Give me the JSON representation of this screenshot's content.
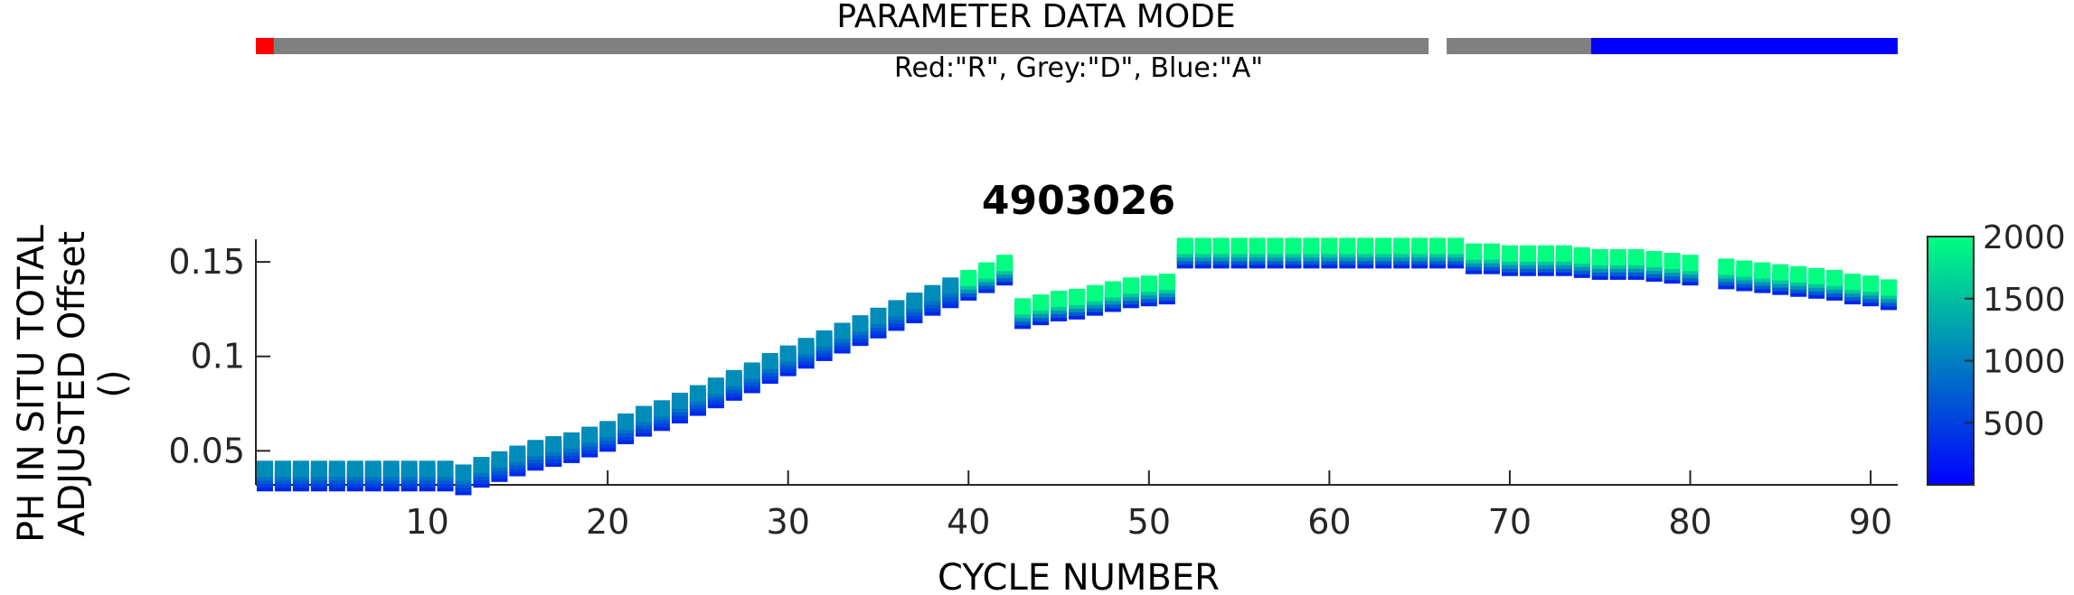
{
  "data_mode_bar": {
    "title": "PARAMETER DATA MODE",
    "legend": "Red:\"R\", Grey:\"D\", Blue:\"A\"",
    "colors": {
      "R": "#ff0000",
      "D": "#808080",
      "A": "#0000ff"
    },
    "segments": [
      {
        "mode": "R",
        "from": 1,
        "to": 1
      },
      {
        "mode": "D",
        "from": 2,
        "to": 65
      },
      {
        "mode": "D",
        "from": 67,
        "to": 74
      },
      {
        "mode": "A",
        "from": 75,
        "to": 91
      }
    ]
  },
  "chart_data": {
    "type": "scatter",
    "title": "4903026",
    "xlabel": "CYCLE NUMBER",
    "ylabel": [
      "PH IN SITU TOTAL",
      "ADJUSTED Offset",
      "()"
    ],
    "xlim": [
      0.5,
      91.5
    ],
    "ylim": [
      0.032,
      0.162
    ],
    "xticks": [
      10,
      20,
      30,
      40,
      50,
      60,
      70,
      80,
      90
    ],
    "yticks": [
      0.05,
      0.1,
      0.15
    ],
    "ytick_labels": [
      "0.05",
      "0.1",
      "0.15"
    ],
    "colorbar": {
      "range": [
        0,
        2000
      ],
      "ticks": [
        500,
        1000,
        1500,
        2000
      ],
      "colormap": [
        "#0000ff",
        "#00ff80"
      ]
    },
    "profiles": [
      {
        "cycle": 1,
        "value": 0.04
      },
      {
        "cycle": 2,
        "value": 0.04
      },
      {
        "cycle": 3,
        "value": 0.04
      },
      {
        "cycle": 4,
        "value": 0.04
      },
      {
        "cycle": 5,
        "value": 0.04
      },
      {
        "cycle": 6,
        "value": 0.04
      },
      {
        "cycle": 7,
        "value": 0.04
      },
      {
        "cycle": 8,
        "value": 0.04
      },
      {
        "cycle": 9,
        "value": 0.04
      },
      {
        "cycle": 10,
        "value": 0.04
      },
      {
        "cycle": 11,
        "value": 0.04
      },
      {
        "cycle": 12,
        "value": 0.038
      },
      {
        "cycle": 13,
        "value": 0.042
      },
      {
        "cycle": 14,
        "value": 0.045
      },
      {
        "cycle": 15,
        "value": 0.048
      },
      {
        "cycle": 16,
        "value": 0.051
      },
      {
        "cycle": 17,
        "value": 0.053
      },
      {
        "cycle": 18,
        "value": 0.055
      },
      {
        "cycle": 19,
        "value": 0.058
      },
      {
        "cycle": 20,
        "value": 0.061
      },
      {
        "cycle": 21,
        "value": 0.065
      },
      {
        "cycle": 22,
        "value": 0.069
      },
      {
        "cycle": 23,
        "value": 0.072
      },
      {
        "cycle": 24,
        "value": 0.076
      },
      {
        "cycle": 25,
        "value": 0.08
      },
      {
        "cycle": 26,
        "value": 0.084
      },
      {
        "cycle": 27,
        "value": 0.088
      },
      {
        "cycle": 28,
        "value": 0.092
      },
      {
        "cycle": 29,
        "value": 0.097
      },
      {
        "cycle": 30,
        "value": 0.101
      },
      {
        "cycle": 31,
        "value": 0.105
      },
      {
        "cycle": 32,
        "value": 0.109
      },
      {
        "cycle": 33,
        "value": 0.113
      },
      {
        "cycle": 34,
        "value": 0.117
      },
      {
        "cycle": 35,
        "value": 0.121
      },
      {
        "cycle": 36,
        "value": 0.125
      },
      {
        "cycle": 37,
        "value": 0.129
      },
      {
        "cycle": 38,
        "value": 0.133
      },
      {
        "cycle": 39,
        "value": 0.137
      },
      {
        "cycle": 40,
        "value": 0.141
      },
      {
        "cycle": 41,
        "value": 0.145
      },
      {
        "cycle": 42,
        "value": 0.149
      },
      {
        "cycle": 43,
        "value": 0.126
      },
      {
        "cycle": 44,
        "value": 0.128
      },
      {
        "cycle": 45,
        "value": 0.13
      },
      {
        "cycle": 46,
        "value": 0.131
      },
      {
        "cycle": 47,
        "value": 0.133
      },
      {
        "cycle": 48,
        "value": 0.135
      },
      {
        "cycle": 49,
        "value": 0.137
      },
      {
        "cycle": 50,
        "value": 0.138
      },
      {
        "cycle": 51,
        "value": 0.139
      },
      {
        "cycle": 52,
        "value": 0.158
      },
      {
        "cycle": 53,
        "value": 0.158
      },
      {
        "cycle": 54,
        "value": 0.158
      },
      {
        "cycle": 55,
        "value": 0.158
      },
      {
        "cycle": 56,
        "value": 0.158
      },
      {
        "cycle": 57,
        "value": 0.158
      },
      {
        "cycle": 58,
        "value": 0.158
      },
      {
        "cycle": 59,
        "value": 0.158
      },
      {
        "cycle": 60,
        "value": 0.158
      },
      {
        "cycle": 61,
        "value": 0.158
      },
      {
        "cycle": 62,
        "value": 0.158
      },
      {
        "cycle": 63,
        "value": 0.158
      },
      {
        "cycle": 64,
        "value": 0.158
      },
      {
        "cycle": 65,
        "value": 0.158
      },
      {
        "cycle": 66,
        "value": 0.158
      },
      {
        "cycle": 67,
        "value": 0.158
      },
      {
        "cycle": 68,
        "value": 0.155
      },
      {
        "cycle": 69,
        "value": 0.155
      },
      {
        "cycle": 70,
        "value": 0.154
      },
      {
        "cycle": 71,
        "value": 0.154
      },
      {
        "cycle": 72,
        "value": 0.154
      },
      {
        "cycle": 73,
        "value": 0.154
      },
      {
        "cycle": 74,
        "value": 0.153
      },
      {
        "cycle": 75,
        "value": 0.152
      },
      {
        "cycle": 76,
        "value": 0.152
      },
      {
        "cycle": 77,
        "value": 0.152
      },
      {
        "cycle": 78,
        "value": 0.151
      },
      {
        "cycle": 79,
        "value": 0.15
      },
      {
        "cycle": 80,
        "value": 0.149
      },
      {
        "cycle": 82,
        "value": 0.147
      },
      {
        "cycle": 83,
        "value": 0.146
      },
      {
        "cycle": 84,
        "value": 0.145
      },
      {
        "cycle": 85,
        "value": 0.144
      },
      {
        "cycle": 86,
        "value": 0.143
      },
      {
        "cycle": 87,
        "value": 0.142
      },
      {
        "cycle": 88,
        "value": 0.141
      },
      {
        "cycle": 89,
        "value": 0.139
      },
      {
        "cycle": 90,
        "value": 0.138
      },
      {
        "cycle": 91,
        "value": 0.136
      }
    ]
  }
}
